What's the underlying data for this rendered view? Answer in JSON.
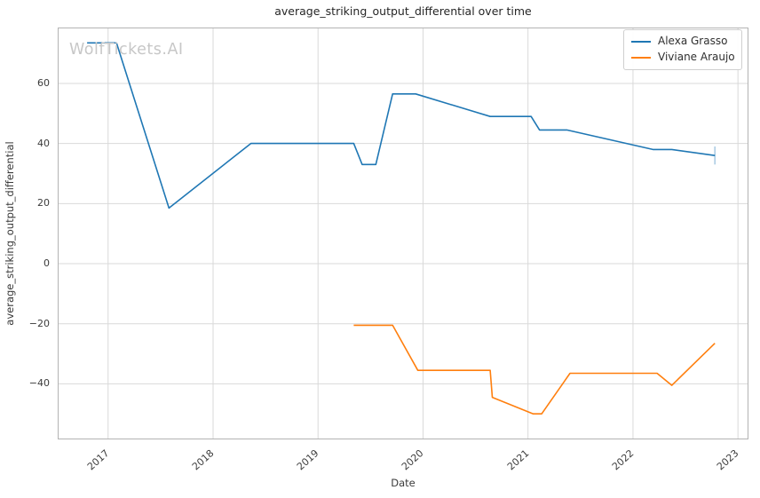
{
  "watermark": "WolfTickets.AI",
  "chart_data": {
    "type": "line",
    "title": "average_striking_output_differential over time",
    "xlabel": "Date",
    "ylabel": "average_striking_output_differential",
    "grid": true,
    "legend_position": "upper right",
    "x_domain": [
      2016.52,
      2023.1
    ],
    "y_domain": [
      -58.5,
      78.6
    ],
    "x_ticks": [
      {
        "v": 2017,
        "label": "2017"
      },
      {
        "v": 2018,
        "label": "2018"
      },
      {
        "v": 2019,
        "label": "2019"
      },
      {
        "v": 2020,
        "label": "2020"
      },
      {
        "v": 2021,
        "label": "2021"
      },
      {
        "v": 2022,
        "label": "2022"
      },
      {
        "v": 2023,
        "label": "2023"
      }
    ],
    "y_ticks": [
      {
        "v": -40,
        "label": "−40"
      },
      {
        "v": -20,
        "label": "−20"
      },
      {
        "v": 0,
        "label": "0"
      },
      {
        "v": 20,
        "label": "20"
      },
      {
        "v": 40,
        "label": "40"
      },
      {
        "v": 60,
        "label": "60"
      }
    ],
    "series": [
      {
        "name": "Alexa Grasso",
        "color": "#1f77b4",
        "points": [
          [
            2016.8,
            73.5
          ],
          [
            2017.08,
            73.5
          ],
          [
            2017.58,
            18.5
          ],
          [
            2018.36,
            40
          ],
          [
            2019.34,
            40
          ],
          [
            2019.42,
            33
          ],
          [
            2019.55,
            33
          ],
          [
            2019.71,
            56.5
          ],
          [
            2019.93,
            56.5
          ],
          [
            2020.64,
            49
          ],
          [
            2021.03,
            49
          ],
          [
            2021.11,
            44.5
          ],
          [
            2021.37,
            44.5
          ],
          [
            2022.19,
            38
          ],
          [
            2022.37,
            38
          ],
          [
            2022.78,
            36
          ]
        ],
        "end_error_bar": {
          "x": 2022.78,
          "low": 33,
          "high": 39,
          "opacity": 0.45
        }
      },
      {
        "name": "Viviane Araujo",
        "color": "#ff7f0e",
        "points": [
          [
            2019.34,
            -20.5
          ],
          [
            2019.71,
            -20.5
          ],
          [
            2019.95,
            -35.5
          ],
          [
            2020.64,
            -35.5
          ],
          [
            2020.66,
            -44.5
          ],
          [
            2021.05,
            -50
          ],
          [
            2021.13,
            -50
          ],
          [
            2021.4,
            -36.5
          ],
          [
            2022.23,
            -36.5
          ],
          [
            2022.37,
            -40.5
          ],
          [
            2022.78,
            -26.5
          ]
        ]
      }
    ],
    "colors": {
      "grid": "#d9d9d9",
      "spine": "#b3b3b3",
      "text": "#3a3a3a",
      "watermark": "#c7c7c7"
    }
  }
}
